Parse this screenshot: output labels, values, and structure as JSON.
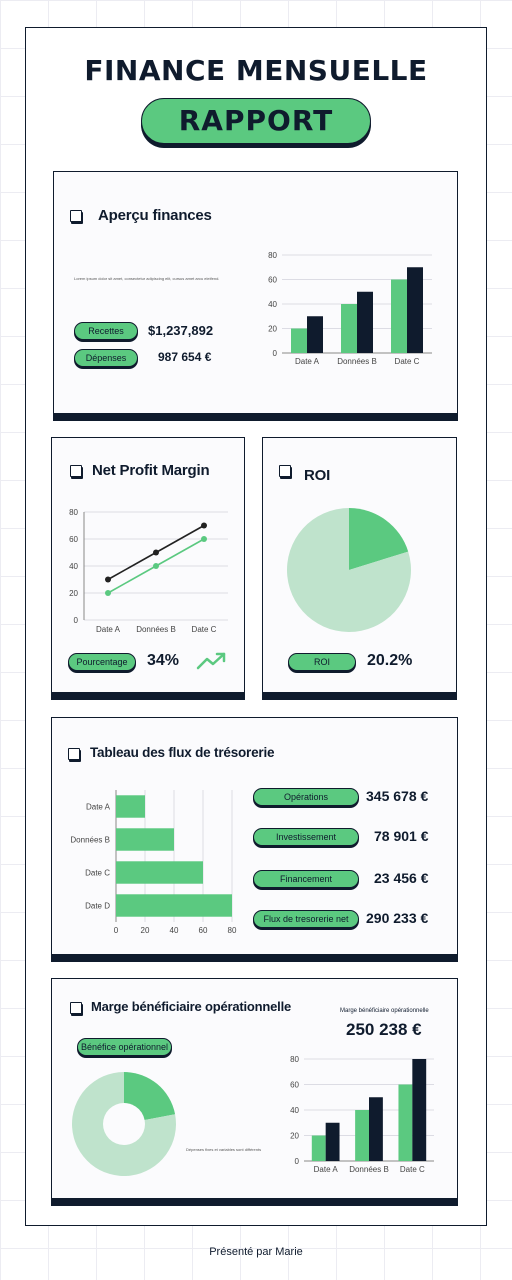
{
  "header": {
    "title": "FINANCE MENSUELLE",
    "subtitle": "RAPPORT"
  },
  "overview": {
    "title": "Aperçu finances",
    "description": "Lorem ipsum dolor sit amet, consectetur adipiscing elit, cursus amet arcu eleifend.",
    "income_label": "Recettes",
    "income_value": "$1,237,892",
    "expense_label": "Dépenses",
    "expense_value": "987 654 €"
  },
  "net_profit": {
    "title": "Net Profit Margin",
    "pill": "Pourcentage",
    "value": "34%",
    "trend_icon": "trend-up-icon"
  },
  "roi": {
    "title": "ROI",
    "pill": "ROI",
    "value": "20.2%"
  },
  "cashflow": {
    "title": "Tableau des flux de trésorerie",
    "items": [
      {
        "label": "Opérations",
        "value": "345 678 €"
      },
      {
        "label": "Investissement",
        "value": "78 901 €"
      },
      {
        "label": "Financement",
        "value": "23 456 €"
      },
      {
        "label": "Flux de tresorerie net",
        "value": "290 233 €"
      }
    ]
  },
  "operating_margin": {
    "title": "Marge bénéficiaire opérationnelle",
    "side_label": "Marge bénéficiaire opérationnelle",
    "side_value": "250 238 €",
    "pill": "Bénéfice opérationnel",
    "donut_note": "Dépenses fixes et variables sont différents"
  },
  "footer": {
    "text": "Présenté par Marie"
  },
  "colors": {
    "green": "#5bc980",
    "navy": "#0f1b2d",
    "light_green": "#bfe3cc"
  },
  "chart_data": [
    {
      "id": "overview-bars",
      "type": "bar",
      "categories": [
        "Date A",
        "Données B",
        "Date C"
      ],
      "series": [
        {
          "values": [
            20,
            40,
            60
          ]
        },
        {
          "values": [
            30,
            50,
            70
          ]
        }
      ],
      "yticks": [
        "0",
        "20",
        "40",
        "60",
        "80"
      ],
      "ylim": [
        0,
        80
      ],
      "grid": true
    },
    {
      "id": "net-profit-lines",
      "type": "line",
      "categories": [
        "Date A",
        "Données B",
        "Date C"
      ],
      "series": [
        {
          "values": [
            30,
            50,
            70
          ]
        },
        {
          "values": [
            20,
            40,
            60
          ]
        }
      ],
      "yticks": [
        "0",
        "20",
        "40",
        "60",
        "80"
      ],
      "ylim": [
        0,
        80
      ],
      "grid": true
    },
    {
      "id": "roi-pie",
      "type": "pie",
      "values": [
        20.2,
        79.8
      ]
    },
    {
      "id": "cashflow-hbars",
      "type": "bar",
      "orientation": "horizontal",
      "categories": [
        "Date A",
        "Données B",
        "Date C",
        "Date D"
      ],
      "values": [
        20,
        40,
        60,
        80
      ],
      "xticks": [
        "0",
        "20",
        "40",
        "60",
        "80"
      ],
      "xlim": [
        0,
        80
      ],
      "grid": true
    },
    {
      "id": "margin-donut",
      "type": "pie",
      "values": [
        22,
        78
      ]
    },
    {
      "id": "margin-bars",
      "type": "bar",
      "categories": [
        "Date A",
        "Données B",
        "Date C"
      ],
      "series": [
        {
          "values": [
            20,
            40,
            60
          ]
        },
        {
          "values": [
            30,
            50,
            80
          ]
        }
      ],
      "yticks": [
        "0",
        "20",
        "40",
        "60",
        "80"
      ],
      "ylim": [
        0,
        80
      ],
      "grid": true
    }
  ]
}
